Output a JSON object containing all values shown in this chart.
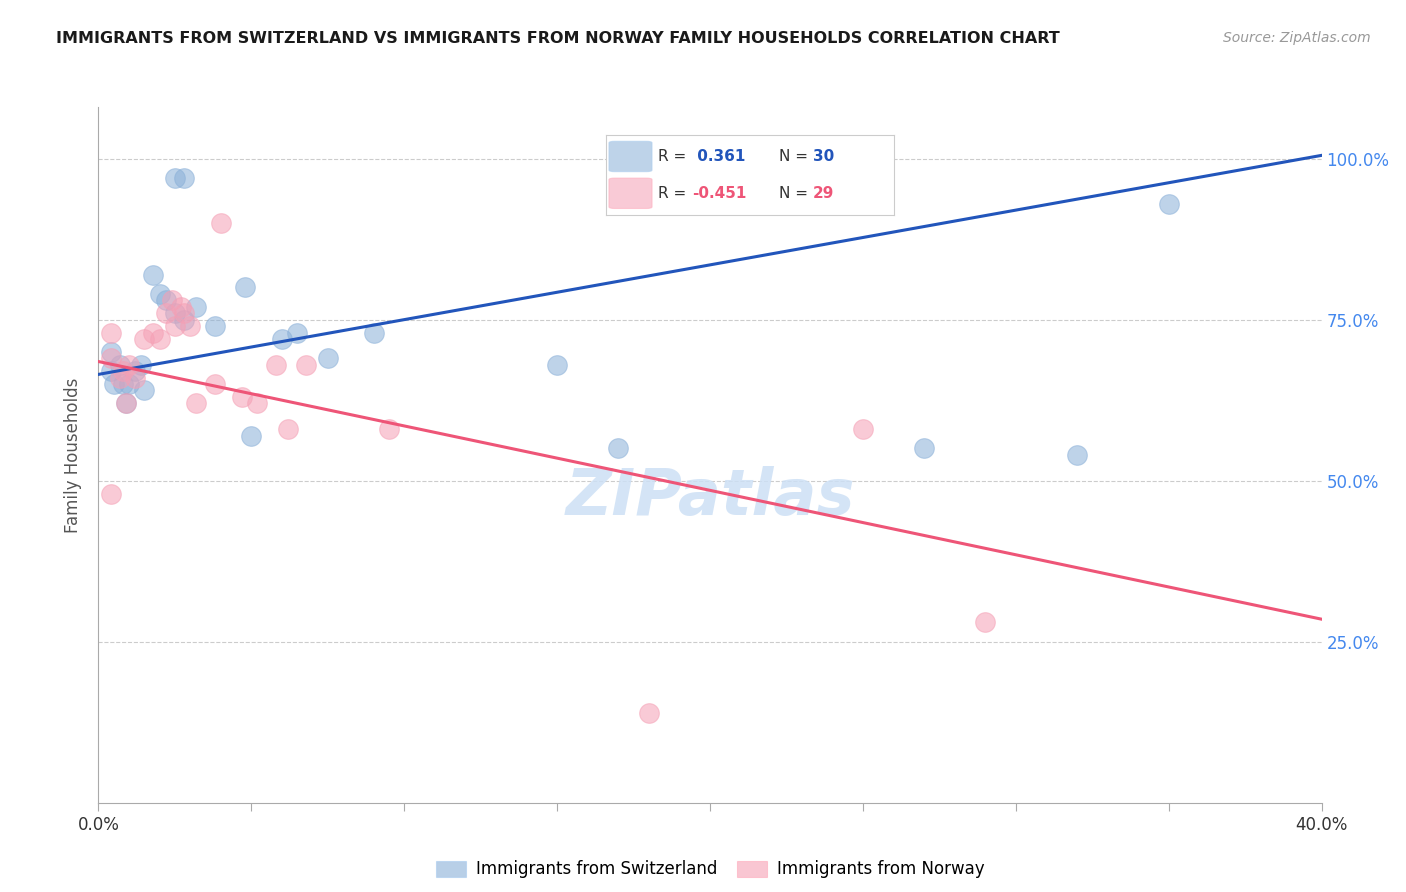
{
  "title": "IMMIGRANTS FROM SWITZERLAND VS IMMIGRANTS FROM NORWAY FAMILY HOUSEHOLDS CORRELATION CHART",
  "source": "Source: ZipAtlas.com",
  "ylabel": "Family Households",
  "ytick_labels": [
    "100.0%",
    "75.0%",
    "50.0%",
    "25.0%"
  ],
  "ytick_values": [
    1.0,
    0.75,
    0.5,
    0.25
  ],
  "xlim": [
    0.0,
    0.4
  ],
  "ylim": [
    0.0,
    1.08
  ],
  "legend_r_switzerland": "0.361",
  "legend_n_switzerland": "30",
  "legend_r_norway": "-0.451",
  "legend_n_norway": "29",
  "swiss_color": "#8ab0d8",
  "norway_color": "#f5a0b5",
  "regression_swiss_color": "#2255bb",
  "regression_norway_color": "#ee5577",
  "swiss_line_x0": 0.0,
  "swiss_line_y0": 0.665,
  "swiss_line_x1": 0.4,
  "swiss_line_y1": 1.005,
  "norway_line_x0": 0.0,
  "norway_line_y0": 0.685,
  "norway_line_x1": 0.4,
  "norway_line_y1": 0.285,
  "swiss_x": [
    0.025,
    0.028,
    0.004,
    0.004,
    0.005,
    0.007,
    0.008,
    0.009,
    0.01,
    0.012,
    0.014,
    0.015,
    0.018,
    0.02,
    0.022,
    0.025,
    0.028,
    0.032,
    0.038,
    0.048,
    0.05,
    0.06,
    0.065,
    0.075,
    0.09,
    0.15,
    0.17,
    0.27,
    0.32,
    0.35
  ],
  "swiss_y": [
    0.97,
    0.97,
    0.7,
    0.67,
    0.65,
    0.68,
    0.65,
    0.62,
    0.65,
    0.67,
    0.68,
    0.64,
    0.82,
    0.79,
    0.78,
    0.76,
    0.75,
    0.77,
    0.74,
    0.8,
    0.57,
    0.72,
    0.73,
    0.69,
    0.73,
    0.68,
    0.55,
    0.55,
    0.54,
    0.93
  ],
  "norway_x": [
    0.004,
    0.004,
    0.004,
    0.007,
    0.008,
    0.009,
    0.01,
    0.012,
    0.015,
    0.018,
    0.02,
    0.022,
    0.024,
    0.025,
    0.027,
    0.028,
    0.03,
    0.032,
    0.038,
    0.04,
    0.047,
    0.052,
    0.058,
    0.062,
    0.068,
    0.095,
    0.18,
    0.25,
    0.29
  ],
  "norway_y": [
    0.73,
    0.69,
    0.48,
    0.66,
    0.67,
    0.62,
    0.68,
    0.66,
    0.72,
    0.73,
    0.72,
    0.76,
    0.78,
    0.74,
    0.77,
    0.76,
    0.74,
    0.62,
    0.65,
    0.9,
    0.63,
    0.62,
    0.68,
    0.58,
    0.68,
    0.58,
    0.14,
    0.58,
    0.28
  ],
  "xtick_positions": [
    0.0,
    0.05,
    0.1,
    0.15,
    0.2,
    0.25,
    0.3,
    0.35,
    0.4
  ],
  "watermark": "ZIPatlas",
  "watermark_color": "#cde0f5"
}
